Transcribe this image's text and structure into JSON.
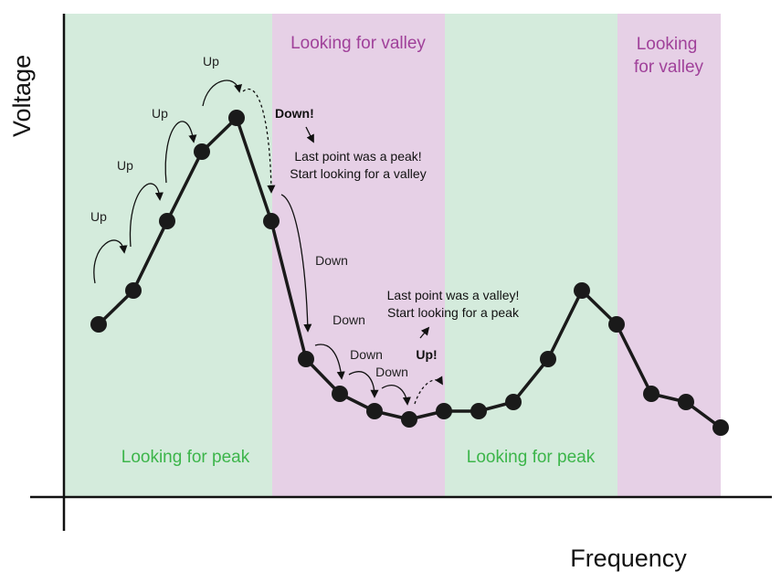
{
  "colors": {
    "peak_region": "#d4ebdc",
    "valley_region": "#e6d0e6",
    "peak_text": "#3cb54a",
    "valley_text": "#a0419a",
    "line": "#1a1a1a"
  },
  "axes": {
    "x_title": "Frequency",
    "y_title": "Voltage"
  },
  "regions": [
    {
      "mode": "peak",
      "label": [
        "Looking for peak"
      ]
    },
    {
      "mode": "valley",
      "label": [
        "Looking for valley"
      ]
    },
    {
      "mode": "peak",
      "label": [
        "Looking for peak"
      ]
    },
    {
      "mode": "valley",
      "label": [
        "Looking",
        "for valley"
      ]
    }
  ],
  "step_labels": {
    "up": "Up",
    "down": "Down"
  },
  "annotations": {
    "down_trigger": "Down!",
    "peak_found": [
      "Last point was a peak!",
      "Start looking for a valley"
    ],
    "up_trigger": "Up!",
    "valley_found": [
      "Last point was a valley!",
      "Start looking for a peak"
    ]
  }
}
